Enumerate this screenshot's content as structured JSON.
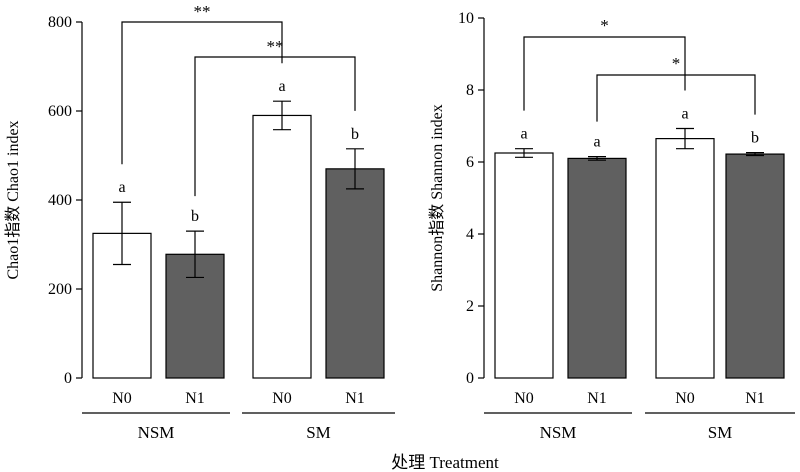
{
  "shared_xlabel": "处理  Treatment",
  "chart_data": [
    {
      "type": "bar",
      "ylabel": "Chao1指数 Chao1 index",
      "ylim": [
        0,
        800
      ],
      "yticks": [
        0,
        200,
        400,
        600,
        800
      ],
      "groups": [
        "NSM",
        "SM"
      ],
      "categories": [
        "N0",
        "N1",
        "N0",
        "N1"
      ],
      "values": [
        325,
        278,
        590,
        470
      ],
      "errors": [
        70,
        52,
        32,
        45
      ],
      "fill_colors": [
        "#ffffff",
        "#606060",
        "#ffffff",
        "#606060"
      ],
      "letters": [
        "a",
        "b",
        "a",
        "b"
      ],
      "significance": [
        {
          "from": 0,
          "to": 2,
          "label": "**"
        },
        {
          "from": 1,
          "to": 3,
          "label": "**"
        }
      ]
    },
    {
      "type": "bar",
      "ylabel": "Shannon指数 Shannon index",
      "ylim": [
        0,
        10
      ],
      "yticks": [
        0,
        2,
        4,
        6,
        8,
        10
      ],
      "groups": [
        "NSM",
        "SM"
      ],
      "categories": [
        "N0",
        "N1",
        "N0",
        "N1"
      ],
      "values": [
        6.25,
        6.1,
        6.65,
        6.22
      ],
      "errors": [
        0.12,
        0.05,
        0.28,
        0.04
      ],
      "fill_colors": [
        "#ffffff",
        "#606060",
        "#ffffff",
        "#606060"
      ],
      "letters": [
        "a",
        "a",
        "a",
        "b"
      ],
      "significance": [
        {
          "from": 0,
          "to": 2,
          "label": "*"
        },
        {
          "from": 1,
          "to": 3,
          "label": "*"
        }
      ]
    }
  ]
}
